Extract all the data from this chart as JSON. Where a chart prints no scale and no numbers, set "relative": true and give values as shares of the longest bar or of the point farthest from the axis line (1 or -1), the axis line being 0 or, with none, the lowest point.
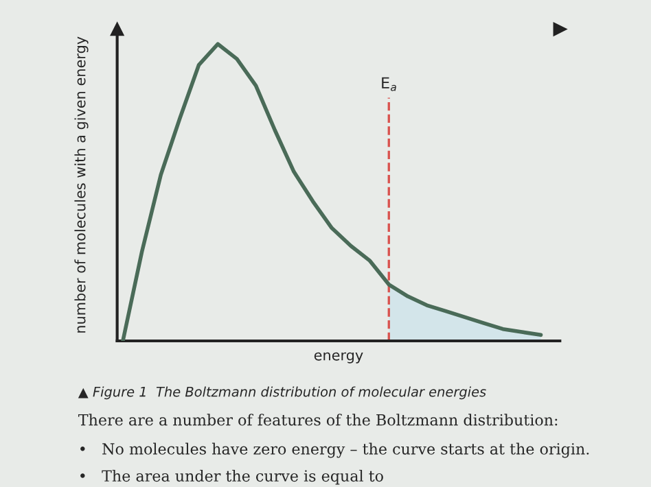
{
  "chart_data": {
    "type": "line",
    "relative": true,
    "xlabel": "energy",
    "ylabel": "number of molecules with a given energy",
    "categories": [
      null,
      null,
      null,
      null,
      null,
      null,
      null,
      null,
      null,
      null,
      null,
      null,
      null,
      null,
      null,
      null,
      null,
      null,
      null,
      null,
      null,
      null,
      null
    ],
    "series": [
      {
        "color": "#4a6b58",
        "values": [
          0,
          0.3,
          0.56,
          0.75,
          0.93,
          1.0,
          0.95,
          0.86,
          0.71,
          0.57,
          0.47,
          0.38,
          0.32,
          0.27,
          0.19,
          0.15,
          0.12,
          0.1,
          0.08,
          0.06,
          0.04,
          0.03,
          0.02
        ]
      },
      {
        "type": "area",
        "color": "#d3e5ea",
        "values": [
          null,
          null,
          null,
          null,
          null,
          null,
          null,
          null,
          null,
          null,
          null,
          null,
          null,
          null,
          0.19,
          0.15,
          0.12,
          0.1,
          0.08,
          0.06,
          0.04,
          0.03,
          0.02
        ]
      }
    ],
    "annotations": [
      "E$_{a}$",
      "▲ Figure 1  The Boltzmann distribution of molecular energies",
      "There are a number of features of the Boltzmann distribution:",
      "•   No molecules have zero energy – the curve starts at the origin.",
      "•   The area under the curve is equal to"
    ],
    "grid": false,
    "legend": false
  }
}
